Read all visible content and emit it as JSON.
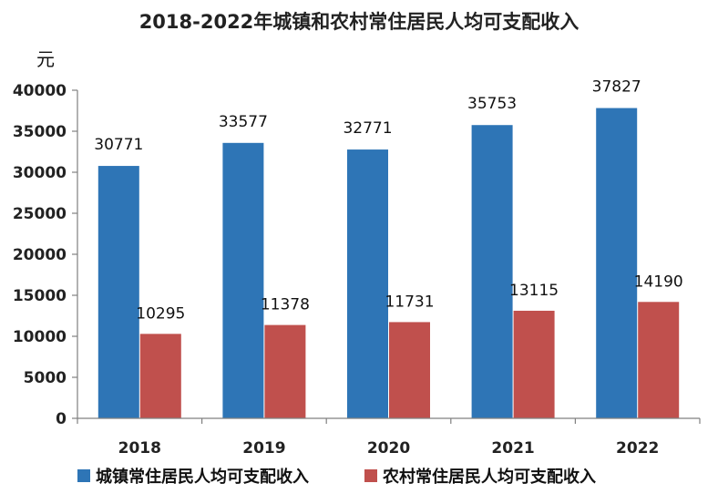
{
  "chart_data": {
    "type": "bar",
    "title": "2018-2022年城镇和农村常住居民人均可支配收入",
    "ylabel": "元",
    "xlabel": "",
    "categories": [
      "2018",
      "2019",
      "2020",
      "2021",
      "2022"
    ],
    "ylim": [
      0,
      40000
    ],
    "yticks": [
      0,
      5000,
      10000,
      15000,
      20000,
      25000,
      30000,
      35000,
      40000
    ],
    "series": [
      {
        "name": "城镇常住居民人均可支配收入",
        "color": "#2E75B6",
        "values": [
          30771,
          33577,
          32771,
          35753,
          37827
        ]
      },
      {
        "name": "农村常住居民人均可支配收入",
        "color": "#C0504D",
        "values": [
          10295,
          11378,
          11731,
          13115,
          14190
        ]
      }
    ],
    "legend_position": "bottom",
    "grid": false,
    "data_labels": true
  }
}
